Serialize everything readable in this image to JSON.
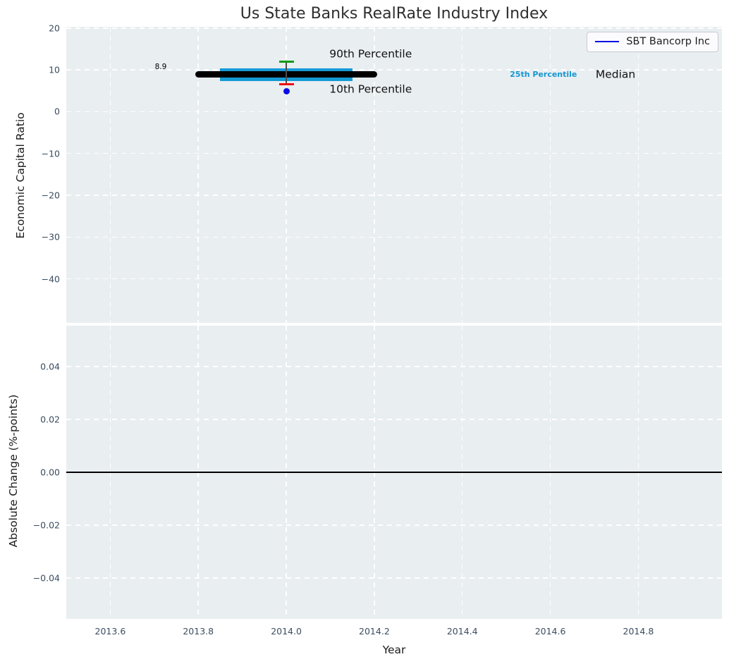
{
  "figure": {
    "title": "Us State Banks RealRate Industry Index",
    "background": "#ffffff",
    "axes_background": "#e9eef1",
    "tick_color": "#3b4c61"
  },
  "chart_data": [
    {
      "panel": "economic-capital-ratio",
      "type": "scatter",
      "title": "Us State Banks RealRate Industry Index",
      "xlabel": "Year",
      "ylabel": "Economic Capital Ratio",
      "xlim": [
        2013.5,
        2014.99
      ],
      "ylim": [
        -50.5,
        20.3
      ],
      "grid": {
        "show": true,
        "color": "#ffffff",
        "style": "dashed"
      },
      "x_ticks": [
        {
          "value": 2013.6,
          "label": "2013.6"
        },
        {
          "value": 2013.8,
          "label": "2013.8"
        },
        {
          "value": 2014.0,
          "label": "2014.0"
        },
        {
          "value": 2014.2,
          "label": "2014.2"
        },
        {
          "value": 2014.4,
          "label": "2014.4"
        },
        {
          "value": 2014.6,
          "label": "2014.6"
        },
        {
          "value": 2014.8,
          "label": "2014.8"
        }
      ],
      "x_tick_labels_visible": false,
      "y_ticks": [
        {
          "value": 20,
          "label": "20"
        },
        {
          "value": 10,
          "label": "10"
        },
        {
          "value": 0,
          "label": "0"
        },
        {
          "value": -10,
          "label": "−10"
        },
        {
          "value": -20,
          "label": "−20"
        },
        {
          "value": -30,
          "label": "−30"
        },
        {
          "value": -40,
          "label": "−40"
        }
      ],
      "legend": {
        "position": "upper right",
        "entries": [
          {
            "label": "SBT Bancorp Inc",
            "color": "#0a0ae6",
            "marker": "line"
          }
        ]
      },
      "median_line": {
        "x_start": 2013.8,
        "x_end": 2014.2,
        "value": 8.9,
        "color": "#000000"
      },
      "percentile_band": {
        "represents": "25th-75th percentile",
        "x_start": 2013.85,
        "x_end": 2014.15,
        "top_value": 10.4,
        "bottom_value": 7.4,
        "color": "#149ad5"
      },
      "whisker": {
        "x": 2014.0,
        "p90_value": 11.9,
        "p10_value": 6.5,
        "line_color": "#4d4d4d",
        "p90_cap_color": "#0f9c0f",
        "p10_cap_color": "#f01010"
      },
      "company_point": {
        "name": "SBT Bancorp Inc",
        "x": 2014.0,
        "value": 4.8,
        "color": "#0a0ae6"
      },
      "annotations": [
        {
          "text": "8.9",
          "x": 2013.728,
          "y": 10.5,
          "color": "#000000",
          "size": 10.5,
          "align": "right",
          "weight": "normal"
        },
        {
          "text": "90th Percentile",
          "x": 2014.098,
          "y": 13.7,
          "color": "#111111",
          "size": 15.5,
          "align": "left",
          "weight": "normal"
        },
        {
          "text": "10th Percentile",
          "x": 2014.098,
          "y": 5.3,
          "color": "#111111",
          "size": 15.5,
          "align": "left",
          "weight": "normal"
        },
        {
          "text": "25th Percentile",
          "x": 2014.508,
          "y": 8.8,
          "color": "#1697cf",
          "size": 11,
          "align": "left",
          "weight": "bold"
        },
        {
          "text": "Median",
          "x": 2014.703,
          "y": 8.8,
          "color": "#111111",
          "size": 15.5,
          "align": "left",
          "weight": "normal"
        }
      ]
    },
    {
      "panel": "absolute-change",
      "type": "line",
      "xlabel": "Year",
      "ylabel": "Absolute Change (%-points)",
      "xlim": [
        2013.5,
        2014.99
      ],
      "ylim": [
        -0.0555,
        0.0555
      ],
      "grid": {
        "show": true,
        "color": "#ffffff",
        "style": "dashed"
      },
      "x_ticks": [
        {
          "value": 2013.6,
          "label": "2013.6"
        },
        {
          "value": 2013.8,
          "label": "2013.8"
        },
        {
          "value": 2014.0,
          "label": "2014.0"
        },
        {
          "value": 2014.2,
          "label": "2014.2"
        },
        {
          "value": 2014.4,
          "label": "2014.4"
        },
        {
          "value": 2014.6,
          "label": "2014.6"
        },
        {
          "value": 2014.8,
          "label": "2014.8"
        }
      ],
      "x_tick_labels_visible": true,
      "y_ticks": [
        {
          "value": 0.04,
          "label": "0.04"
        },
        {
          "value": 0.02,
          "label": "0.02"
        },
        {
          "value": 0.0,
          "label": "0.00"
        },
        {
          "value": -0.02,
          "label": "−0.02"
        },
        {
          "value": -0.04,
          "label": "−0.04"
        }
      ],
      "zero_line": {
        "value": 0.0,
        "color": "#000000"
      },
      "series": []
    }
  ]
}
